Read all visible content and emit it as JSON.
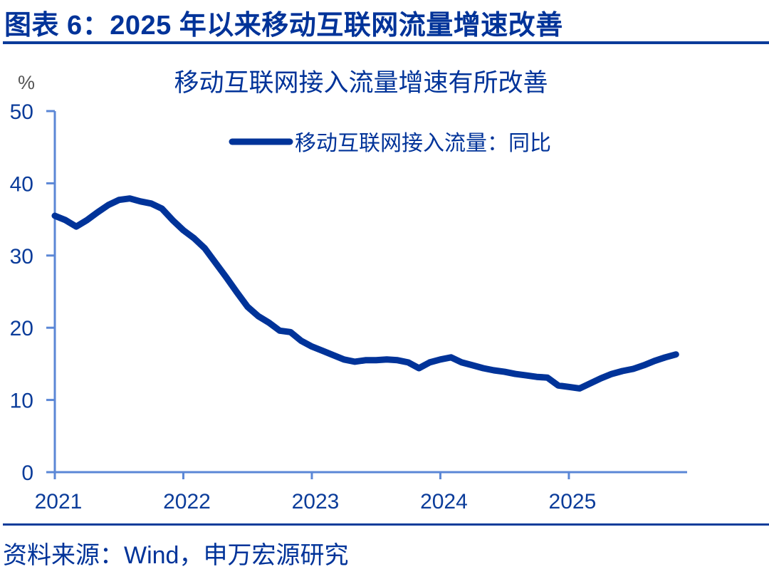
{
  "figure": {
    "title": "图表 6：2025 年以来移动互联网流量增速改善",
    "source": "资料来源：Wind，申万宏源研究"
  },
  "colors": {
    "series": "#003399",
    "axis": "#5b87d6",
    "text": "#003399",
    "rule": "#0b3c9a"
  },
  "chart_data": {
    "type": "line",
    "title": "移动互联网接入流量增速有所改善",
    "xlabel": "",
    "ylabel": "%",
    "ylim": [
      0,
      50
    ],
    "yticks": [
      0,
      10,
      20,
      30,
      40,
      50
    ],
    "xticks": [
      "2021",
      "2022",
      "2023",
      "2024",
      "2025"
    ],
    "grid": false,
    "legend_position": "top-center",
    "x_start": "2021-01",
    "x_frequency": "monthly",
    "x": [
      "2021-01",
      "2021-02",
      "2021-03",
      "2021-04",
      "2021-05",
      "2021-06",
      "2021-07",
      "2021-08",
      "2021-09",
      "2021-10",
      "2021-11",
      "2021-12",
      "2022-01",
      "2022-02",
      "2022-03",
      "2022-04",
      "2022-05",
      "2022-06",
      "2022-07",
      "2022-08",
      "2022-09",
      "2022-10",
      "2022-11",
      "2022-12",
      "2023-01",
      "2023-02",
      "2023-03",
      "2023-04",
      "2023-05",
      "2023-06",
      "2023-07",
      "2023-08",
      "2023-09",
      "2023-10",
      "2023-11",
      "2023-12",
      "2024-01",
      "2024-02",
      "2024-03",
      "2024-04",
      "2024-05",
      "2024-06",
      "2024-07",
      "2024-08",
      "2024-09",
      "2024-10",
      "2024-11",
      "2024-12",
      "2025-01",
      "2025-02",
      "2025-03",
      "2025-04",
      "2025-05",
      "2025-06",
      "2025-07",
      "2025-08",
      "2025-09",
      "2025-10",
      "2025-11"
    ],
    "series": [
      {
        "name": "移动互联网接入流量：同比",
        "values": [
          35.5,
          34.9,
          34.0,
          34.9,
          36.0,
          37.0,
          37.7,
          37.9,
          37.5,
          37.2,
          36.5,
          34.9,
          33.5,
          32.4,
          31.0,
          29.0,
          27.0,
          24.9,
          22.9,
          21.6,
          20.7,
          19.6,
          19.4,
          18.2,
          17.4,
          16.8,
          16.2,
          15.6,
          15.3,
          15.5,
          15.5,
          15.6,
          15.5,
          15.2,
          14.4,
          15.2,
          15.6,
          15.9,
          15.2,
          14.8,
          14.4,
          14.1,
          13.9,
          13.6,
          13.4,
          13.2,
          13.1,
          12.0,
          11.8,
          11.6,
          12.3,
          13.0,
          13.6,
          14.0,
          14.3,
          14.8,
          15.4,
          15.9,
          16.3
        ]
      }
    ]
  }
}
